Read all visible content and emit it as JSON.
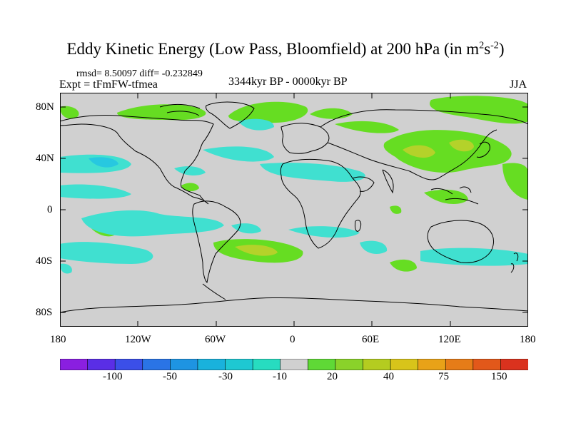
{
  "title_main": "Eddy Kinetic Energy (Low Pass, Bloomfield) at 200 hPa (in m",
  "title_unit_exp1": "2",
  "title_unit_mid": "s",
  "title_unit_exp2": "-2",
  "title_close": ")",
  "stats": "rmsd= 8.50097 diff= -0.232849",
  "experiment": "Expt = tFmFW-tfmea",
  "period": "3344kyr BP - 0000kyr BP",
  "season": "JJA",
  "lat_labels": [
    "80N",
    "40N",
    "0",
    "40S",
    "80S"
  ],
  "lon_labels": [
    "180",
    "120W",
    "60W",
    "0",
    "60E",
    "120E",
    "180"
  ],
  "colorbar": {
    "colors": [
      "#8a1fe0",
      "#5a2ee6",
      "#3b4fe8",
      "#2a74e6",
      "#1e94e2",
      "#19b2dc",
      "#1ec8d2",
      "#27dcc0",
      "#d0d0d0",
      "#5fd936",
      "#8ad22a",
      "#b4cc20",
      "#d8c41a",
      "#e8a218",
      "#e67c18",
      "#e2581a",
      "#da321e"
    ],
    "labels": [
      "-100",
      "-50",
      "-30",
      "-10",
      "20",
      "40",
      "75",
      "150"
    ]
  },
  "legend_colors": {
    "background": "#d0d0d0",
    "neg_light": "#40e0d0",
    "neg_mid": "#27c8e0",
    "pos_light": "#66dd22",
    "pos_mid": "#b4d22a",
    "pos_high": "#d8c820"
  }
}
